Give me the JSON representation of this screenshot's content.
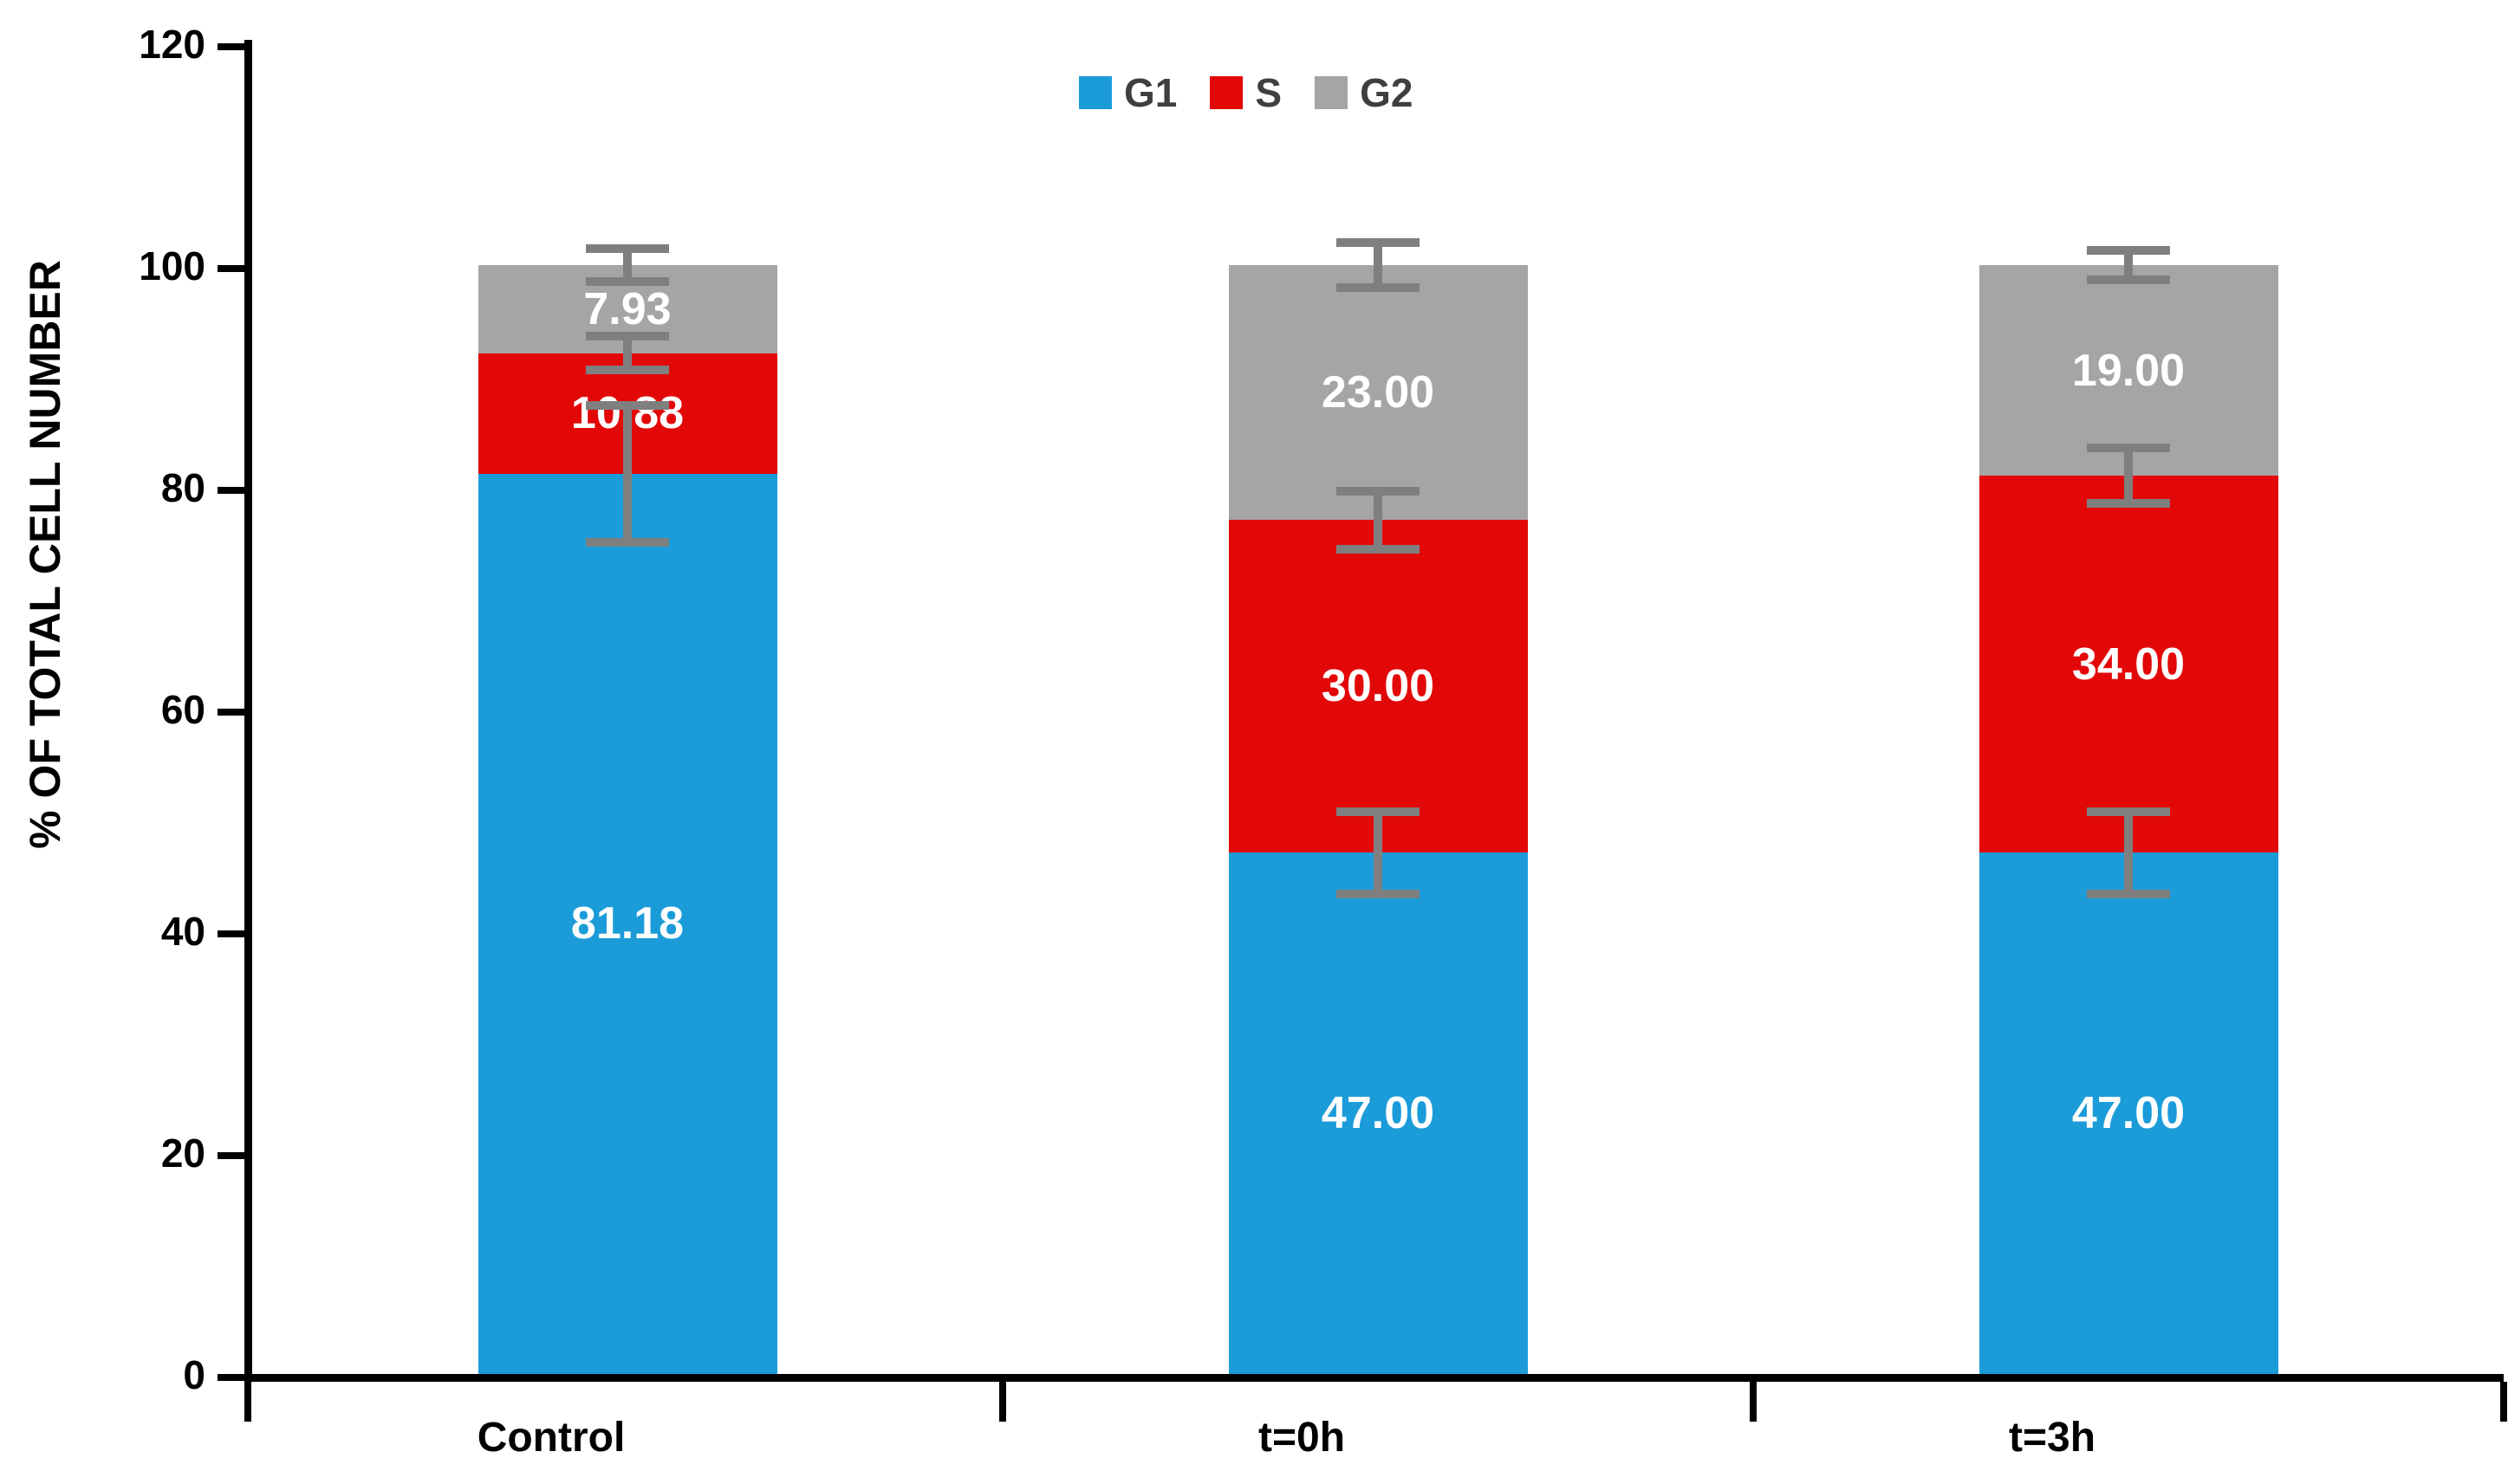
{
  "figure": {
    "background": "#ffffff"
  },
  "chart_data": {
    "type": "bar",
    "stacked": true,
    "title": "",
    "xlabel": "",
    "ylabel": "% OF TOTAL CELL NUMBER",
    "ylim": [
      0,
      120
    ],
    "yticks": [
      0,
      20,
      40,
      60,
      80,
      100,
      120
    ],
    "grid": false,
    "background": "#ffffff",
    "axis_color": "#000000",
    "tick_label_color": "#000000",
    "data_label_color": "#ffffff",
    "legend_text_color": "#3f3f3f",
    "error_bar_color": "#7f7f7f",
    "legend_position": "top-center",
    "categories": [
      "Control",
      "t=0h",
      "t=3h"
    ],
    "series": [
      {
        "name": "G1",
        "color": "#1B9CD9",
        "values": [
          81.18,
          47.0,
          47.0
        ],
        "labels": [
          "81.18",
          "47.00",
          "47.00"
        ]
      },
      {
        "name": "S",
        "color": "#E30808",
        "values": [
          10.88,
          30.0,
          34.0
        ],
        "labels": [
          "10.88",
          "30.00",
          "34.00"
        ]
      },
      {
        "name": "G2",
        "color": "#A5A5A5",
        "values": [
          7.93,
          23.0,
          19.0
        ],
        "labels": [
          "7.93",
          "23.00",
          "19.00"
        ]
      }
    ],
    "legend": [
      {
        "label": "G1",
        "color": "#1B9CD9"
      },
      {
        "label": "S",
        "color": "#E30808"
      },
      {
        "label": "G2",
        "color": "#A5A5A5"
      }
    ],
    "error_bars": [
      {
        "category": "Control",
        "points": [
          {
            "at": 81.18,
            "half": 6.2
          },
          {
            "at": 92.06,
            "half": 1.5
          },
          {
            "at": 99.99,
            "half": 1.5
          }
        ]
      },
      {
        "category": "t=0h",
        "points": [
          {
            "at": 47.0,
            "half": 3.7
          },
          {
            "at": 77.0,
            "half": 2.6
          },
          {
            "at": 100.0,
            "half": 2.0
          }
        ]
      },
      {
        "category": "t=3h",
        "points": [
          {
            "at": 47.0,
            "half": 3.7
          },
          {
            "at": 81.0,
            "half": 2.5
          },
          {
            "at": 100.0,
            "half": 1.3
          }
        ]
      }
    ]
  }
}
